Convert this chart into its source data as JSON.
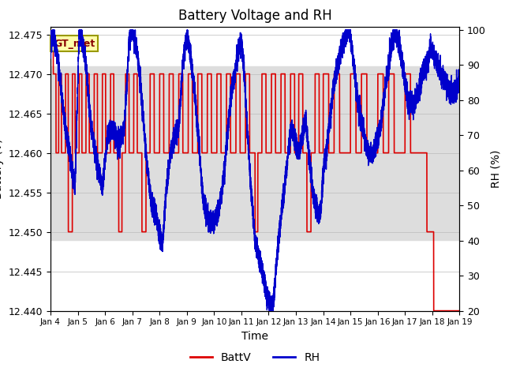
{
  "title": "Battery Voltage and RH",
  "xlabel": "Time",
  "ylabel_left": "Battery (V)",
  "ylabel_right": "RH (%)",
  "annotation": "GT_met",
  "ylim_left": [
    12.44,
    12.476
  ],
  "ylim_right": [
    20,
    101
  ],
  "yticks_left": [
    12.44,
    12.445,
    12.45,
    12.455,
    12.46,
    12.465,
    12.47,
    12.475
  ],
  "yticks_right": [
    20,
    30,
    40,
    50,
    60,
    70,
    80,
    90,
    100
  ],
  "xtick_labels": [
    "Jan 4",
    "Jan 5",
    "Jan 6",
    "Jan 7",
    "Jan 8",
    "Jan 9",
    "Jan 10",
    "Jan 11",
    "Jan 12",
    "Jan 13",
    "Jan 14",
    "Jan 15",
    "Jan 16",
    "Jan 17",
    "Jan 18",
    "Jan 19"
  ],
  "bg_band_ylim": [
    12.449,
    12.471
  ],
  "legend_labels": [
    "BattV",
    "RH"
  ],
  "legend_colors": [
    "#dd0000",
    "#0000cc"
  ],
  "battv_color": "#dd0000",
  "rh_color": "#0000cc",
  "grid_color": "#bbbbbb",
  "annotation_bg": "#ffffaa",
  "annotation_fg": "#880000",
  "fig_bg": "#ffffff",
  "plot_bg": "#ffffff"
}
